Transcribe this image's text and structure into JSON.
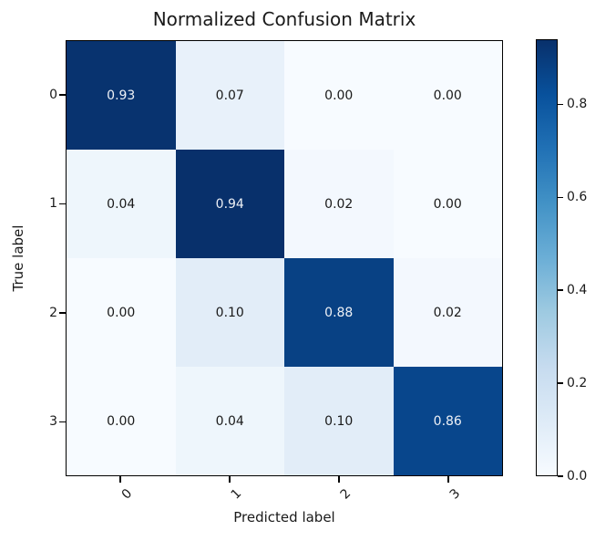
{
  "chart_data": {
    "type": "heatmap",
    "title": "Normalized Confusion Matrix",
    "xlabel": "Predicted label",
    "ylabel": "True label",
    "x_tick_labels": [
      "0",
      "1",
      "2",
      "3"
    ],
    "y_tick_labels": [
      "0",
      "1",
      "2",
      "3"
    ],
    "matrix": [
      [
        0.93,
        0.07,
        0.0,
        0.0
      ],
      [
        0.04,
        0.94,
        0.02,
        0.0
      ],
      [
        0.0,
        0.1,
        0.88,
        0.02
      ],
      [
        0.0,
        0.04,
        0.1,
        0.86
      ]
    ],
    "cell_labels": [
      [
        "0.93",
        "0.07",
        "0.00",
        "0.00"
      ],
      [
        "0.04",
        "0.94",
        "0.02",
        "0.00"
      ],
      [
        "0.00",
        "0.10",
        "0.88",
        "0.02"
      ],
      [
        "0.00",
        "0.04",
        "0.10",
        "0.86"
      ]
    ],
    "cell_colors": [
      [
        "#08336f",
        "#e8f1fa",
        "#f7fbff",
        "#f7fbff"
      ],
      [
        "#eef6fc",
        "#08306b",
        "#f3f8fe",
        "#f7fbff"
      ],
      [
        "#f7fbff",
        "#e2edf8",
        "#084184",
        "#f3f8fe"
      ],
      [
        "#f7fbff",
        "#eef6fc",
        "#e2edf8",
        "#08468c"
      ]
    ],
    "text_color_dark_cells": "#eef1f6",
    "text_color_light_cells": "#1a1a1a",
    "colormap": "Blues",
    "vmin": 0.0,
    "vmax": 0.94,
    "grid": false,
    "colorbar": {
      "tick_labels": [
        "0.0",
        "0.2",
        "0.4",
        "0.6",
        "0.8"
      ],
      "tick_values": [
        0.0,
        0.2,
        0.4,
        0.6,
        0.8
      ],
      "gradient_stops_bottom_to_top": [
        "#f7fbff",
        "#deebf7",
        "#c6dbef",
        "#9ecae1",
        "#6baed6",
        "#4292c6",
        "#2171b5",
        "#08519c",
        "#08306b"
      ]
    }
  }
}
